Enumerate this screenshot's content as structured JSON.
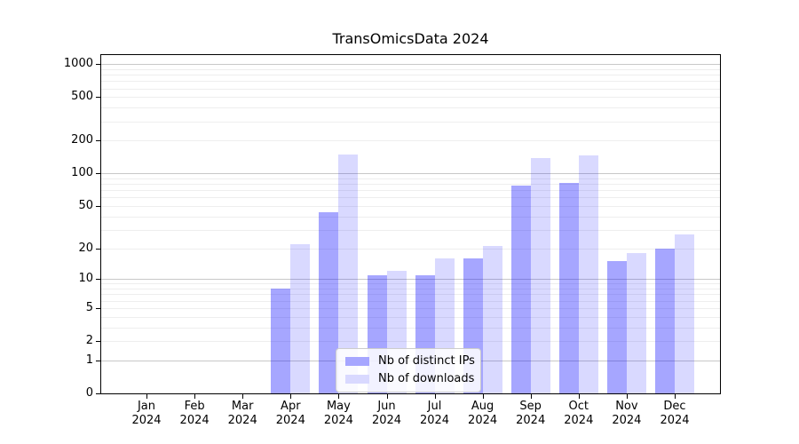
{
  "chart_data": {
    "type": "bar",
    "title": "TransOmicsData 2024",
    "categories": [
      "Jan 2024",
      "Feb 2024",
      "Mar 2024",
      "Apr 2024",
      "May 2024",
      "Jun 2024",
      "Jul 2024",
      "Aug 2024",
      "Sep 2024",
      "Oct 2024",
      "Nov 2024",
      "Dec 2024"
    ],
    "series": [
      {
        "name": "Nb of distinct IPs",
        "fill": "rgba(0,0,255,0.35)",
        "swatch": "#a6a6ff",
        "values": [
          0,
          0,
          0,
          8,
          44,
          11,
          11,
          16,
          77,
          82,
          15,
          20
        ]
      },
      {
        "name": "Nb of downloads",
        "fill": "rgba(0,0,255,0.15)",
        "swatch": "#d9d9ff",
        "values": [
          0,
          0,
          0,
          22,
          148,
          12,
          16,
          21,
          139,
          147,
          18,
          27
        ]
      }
    ],
    "yscale": "log1p",
    "ylim": [
      0,
      1250
    ],
    "y_ticks": [
      0,
      1,
      2,
      5,
      10,
      20,
      50,
      100,
      200,
      500,
      1000
    ],
    "grid": {
      "major": [
        1,
        10,
        100,
        1000
      ],
      "minor": [
        2,
        3,
        4,
        5,
        6,
        7,
        8,
        9,
        20,
        30,
        40,
        50,
        60,
        70,
        80,
        90,
        200,
        300,
        400,
        500,
        600,
        700,
        800,
        900
      ],
      "major_color": "#c8c8c8",
      "minor_color": "#eeeeee"
    },
    "legend_position": "lower center",
    "axis_color": "#000000",
    "text_color": "#000000"
  }
}
